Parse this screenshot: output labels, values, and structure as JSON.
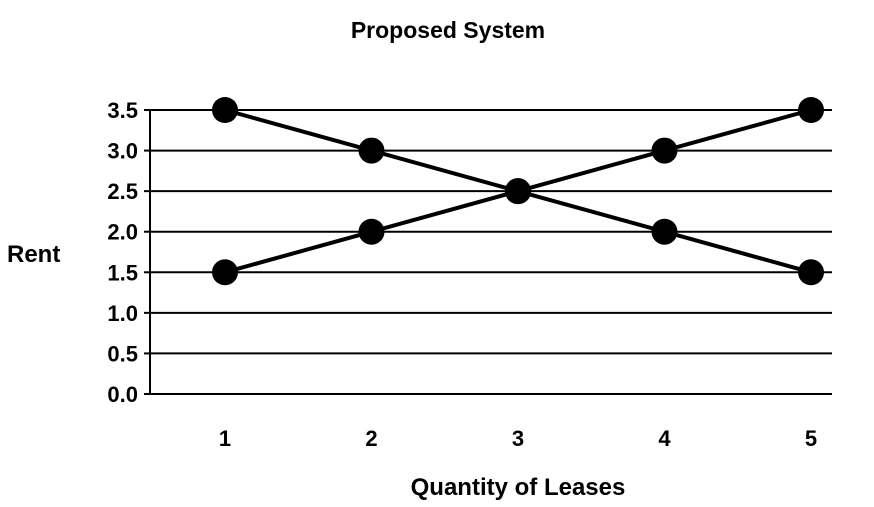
{
  "chart_data": {
    "type": "line",
    "title": "Proposed System",
    "xlabel": "Quantity of Leases",
    "ylabel": "Rent",
    "x": [
      1,
      2,
      3,
      4,
      5
    ],
    "x_tick_labels": [
      "1",
      "2",
      "3",
      "4",
      "5"
    ],
    "y_tick_labels": [
      "3.5",
      "3.0",
      "2.5",
      "2.0",
      "1.5",
      "1.0",
      "0.5",
      "0.0"
    ],
    "ylim": [
      0,
      3.5
    ],
    "grid": "horizontal",
    "legend": "none",
    "series": [
      {
        "values": [
          3.5,
          3.0,
          2.5,
          2.0,
          1.5
        ]
      },
      {
        "values": [
          1.5,
          2.0,
          2.5,
          3.0,
          3.5
        ]
      }
    ],
    "colors": {
      "line": "#000000",
      "marker": "#000000",
      "grid": "#000000"
    }
  }
}
